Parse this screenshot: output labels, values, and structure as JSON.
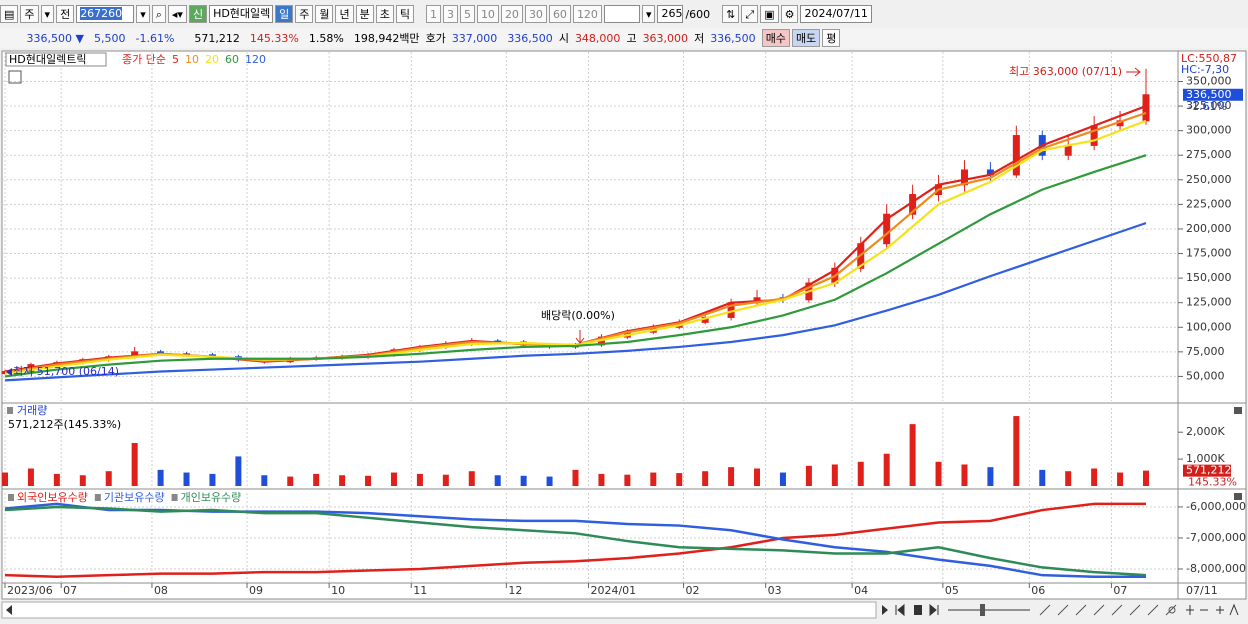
{
  "toolbar": {
    "period_type": "주",
    "prev": "전",
    "code": "267260",
    "new_badge": "신",
    "name": "HD현대일렉",
    "periods": [
      "일",
      "주",
      "월",
      "년",
      "분",
      "초",
      "틱"
    ],
    "intervals": [
      "1",
      "3",
      "5",
      "10",
      "20",
      "30",
      "60",
      "120"
    ],
    "count": "265",
    "max_count": "/600",
    "date": "2024/07/11"
  },
  "quote": {
    "price": "336,500 ▼",
    "change": "5,500",
    "change_pct": "-1.61%",
    "volume": "571,212",
    "volume_pct": "145.33%",
    "turnover": "1.58%",
    "amount": "198,942백만",
    "bid_label": "호가",
    "ask": "337,000",
    "bid": "336,500",
    "open_label": "시",
    "open": "348,000",
    "high_label": "고",
    "high": "363,000",
    "low_label": "저",
    "low": "336,500",
    "buy": "매수",
    "sell": "매도",
    "avg": "평"
  },
  "chart_data": [
    {
      "type": "candlestick",
      "name": "HD현대일렉트릭",
      "ma_label": "종가 단순",
      "x": [
        0,
        6,
        12,
        18,
        24,
        30,
        36,
        42,
        48,
        54,
        60,
        66,
        72,
        78,
        84,
        90,
        96,
        102,
        108,
        114,
        120,
        126,
        132,
        138,
        144,
        150,
        156,
        162,
        168,
        174,
        180,
        186,
        192,
        198,
        204,
        210,
        216,
        222,
        228,
        234,
        240,
        246,
        252,
        258,
        264
      ],
      "open": [
        53000,
        55000,
        62000,
        64000,
        67000,
        70000,
        75000,
        73000,
        72000,
        70000,
        67000,
        65000,
        68000,
        69000,
        70000,
        72000,
        77000,
        80000,
        83000,
        86000,
        85000,
        82000,
        80000,
        82000,
        90000,
        95000,
        100000,
        105000,
        110000,
        125000,
        130000,
        128000,
        145000,
        160000,
        185000,
        215000,
        235000,
        245000,
        260000,
        255000,
        295000,
        275000,
        285000,
        305000,
        310000
      ],
      "high": [
        56700,
        64000,
        66000,
        69000,
        72000,
        80000,
        77000,
        75000,
        74000,
        72000,
        69000,
        70000,
        71000,
        72000,
        74000,
        79000,
        82000,
        86000,
        89000,
        88000,
        87000,
        84000,
        84000,
        93000,
        98000,
        103000,
        108000,
        114000,
        129000,
        138000,
        134000,
        150000,
        166000,
        192000,
        225000,
        245000,
        255000,
        270000,
        268000,
        305000,
        300000,
        295000,
        315000,
        320000,
        363000
      ],
      "low": [
        51700,
        53500,
        60000,
        62000,
        65000,
        68000,
        71000,
        70000,
        68000,
        65000,
        63000,
        63500,
        66000,
        67000,
        68000,
        70000,
        75000,
        78000,
        81000,
        83000,
        80000,
        78000,
        78000,
        80000,
        88000,
        93000,
        98000,
        103000,
        107000,
        122000,
        125000,
        125000,
        141000,
        156000,
        180000,
        210000,
        228000,
        238000,
        248000,
        252000,
        270000,
        270000,
        280000,
        300000,
        306000
      ],
      "close": [
        55000,
        62000,
        64000,
        67000,
        70000,
        75000,
        73000,
        72000,
        70000,
        67000,
        65000,
        68000,
        69000,
        70000,
        72000,
        77000,
        80000,
        83000,
        86000,
        85000,
        82000,
        80000,
        82000,
        90000,
        95000,
        100000,
        105000,
        110000,
        125000,
        130000,
        128000,
        145000,
        160000,
        185000,
        215000,
        235000,
        245000,
        260000,
        255000,
        295000,
        275000,
        285000,
        305000,
        310000,
        336500
      ],
      "up_color": "#e0201b",
      "down_color": "#1f4fd8",
      "ylim": [
        25000,
        380000
      ],
      "yticks": [
        {
          "value": 50000,
          "label": "50,000"
        },
        {
          "value": 75000,
          "label": "75,000"
        },
        {
          "value": 100000,
          "label": "100,000"
        },
        {
          "value": 125000,
          "label": "125,000"
        },
        {
          "value": 150000,
          "label": "150,000"
        },
        {
          "value": 175000,
          "label": "175,000"
        },
        {
          "value": 200000,
          "label": "200,000"
        },
        {
          "value": 225000,
          "label": "225,000"
        },
        {
          "value": 250000,
          "label": "250,000"
        },
        {
          "value": 275000,
          "label": "275,000"
        },
        {
          "value": 300000,
          "label": "300,000"
        },
        {
          "value": 325000,
          "label": "325,000"
        },
        {
          "value": 350000,
          "label": "350,000"
        }
      ],
      "grid": true,
      "lines_x": [
        0,
        12,
        24,
        36,
        48,
        60,
        72,
        84,
        96,
        108,
        120,
        132,
        144,
        156,
        168,
        180,
        192,
        204,
        216,
        228,
        240,
        252,
        264
      ],
      "lines": [
        {
          "name": "5",
          "color": "#e0201b",
          "values": [
            55000,
            63000,
            69000,
            73000,
            70000,
            65000,
            68000,
            72000,
            80000,
            86000,
            83000,
            82000,
            96000,
            105000,
            125000,
            128000,
            158000,
            210000,
            245000,
            255000,
            285000,
            305000,
            325000
          ]
        },
        {
          "name": "10",
          "color": "#f08a1c",
          "values": [
            54000,
            62000,
            68000,
            73000,
            70000,
            66000,
            68000,
            71000,
            79000,
            85000,
            83000,
            82000,
            95000,
            104000,
            122000,
            129000,
            152000,
            195000,
            240000,
            252000,
            282000,
            300000,
            318000
          ]
        },
        {
          "name": "20",
          "color": "#f5e219",
          "values": [
            53000,
            60000,
            67000,
            72000,
            70000,
            67000,
            68000,
            70000,
            77000,
            83000,
            84000,
            82000,
            92000,
            102000,
            116000,
            128000,
            145000,
            180000,
            225000,
            248000,
            280000,
            290000,
            310000
          ]
        },
        {
          "name": "60",
          "color": "#2e9a3a",
          "values": [
            50000,
            57000,
            62000,
            66000,
            68000,
            68000,
            68000,
            70000,
            73000,
            77000,
            80000,
            81000,
            85000,
            92000,
            100000,
            112000,
            128000,
            155000,
            185000,
            215000,
            240000,
            258000,
            275000
          ]
        },
        {
          "name": "120",
          "color": "#2f5ee0",
          "values": [
            46000,
            49000,
            52000,
            55000,
            57000,
            59000,
            61000,
            63000,
            65000,
            68000,
            71000,
            73000,
            76000,
            80000,
            85000,
            92000,
            102000,
            117000,
            133000,
            152000,
            170000,
            188000,
            206000
          ]
        }
      ],
      "annotations": {
        "high": "최고 363,000 (07/11)",
        "low": "최저 51,700 (06/14)",
        "dividend": "배당락(0.00%)"
      },
      "lc": "LC:550,87",
      "hc": "HC:-7,30",
      "last_label": "336,500",
      "last_change": "-1.61%"
    },
    {
      "type": "bar",
      "title": "거래량",
      "subtitle": "571,212주(145.33%)",
      "x": [
        0,
        6,
        12,
        18,
        24,
        30,
        36,
        42,
        48,
        54,
        60,
        66,
        72,
        78,
        84,
        90,
        96,
        102,
        108,
        114,
        120,
        126,
        132,
        138,
        144,
        150,
        156,
        162,
        168,
        174,
        180,
        186,
        192,
        198,
        204,
        210,
        216,
        222,
        228,
        234,
        240,
        246,
        252,
        258,
        264
      ],
      "values": [
        500000,
        650000,
        450000,
        400000,
        550000,
        1600000,
        600000,
        500000,
        450000,
        1100000,
        400000,
        350000,
        450000,
        400000,
        380000,
        500000,
        450000,
        420000,
        550000,
        400000,
        380000,
        350000,
        600000,
        450000,
        420000,
        500000,
        480000,
        550000,
        700000,
        650000,
        500000,
        750000,
        800000,
        900000,
        1200000,
        2300000,
        900000,
        800000,
        700000,
        2600000,
        600000,
        550000,
        650000,
        500000,
        571212
      ],
      "ylim": [
        0,
        2900000
      ],
      "yticks": [
        {
          "value": 1000000,
          "label": "1,000K"
        },
        {
          "value": 2000000,
          "label": "2,000K"
        }
      ],
      "last_label": "571,212",
      "last_pct": "145.33%"
    },
    {
      "type": "line",
      "x": [
        0,
        12,
        24,
        36,
        48,
        60,
        72,
        84,
        96,
        108,
        120,
        132,
        144,
        156,
        168,
        180,
        192,
        204,
        216,
        228,
        240,
        252,
        264
      ],
      "series": [
        {
          "name": "외국인보유수량",
          "color": "#e0201b",
          "values": [
            -8200000,
            -8250000,
            -8200000,
            -8150000,
            -8150000,
            -8100000,
            -8100000,
            -8050000,
            -8000000,
            -7900000,
            -7800000,
            -7750000,
            -7650000,
            -7500000,
            -7300000,
            -7000000,
            -6900000,
            -6700000,
            -6500000,
            -6450000,
            -6100000,
            -5900000,
            -5900000
          ]
        },
        {
          "name": "기관보유수량",
          "color": "#2f5ee0",
          "values": [
            -6050000,
            -5900000,
            -6100000,
            -6100000,
            -6150000,
            -6150000,
            -6150000,
            -6200000,
            -6300000,
            -6400000,
            -6450000,
            -6450000,
            -6550000,
            -6600000,
            -6750000,
            -7050000,
            -7300000,
            -7450000,
            -7700000,
            -7900000,
            -8200000,
            -8250000,
            -8250000
          ]
        },
        {
          "name": "개인보유수량",
          "color": "#2e8b57",
          "values": [
            -6100000,
            -6000000,
            -6050000,
            -6150000,
            -6100000,
            -6200000,
            -6200000,
            -6350000,
            -6500000,
            -6650000,
            -6750000,
            -6850000,
            -7100000,
            -7300000,
            -7350000,
            -7400000,
            -7500000,
            -7500000,
            -7300000,
            -7650000,
            -7950000,
            -8100000,
            -8200000
          ]
        }
      ],
      "ylim": [
        -8420000,
        -5550000
      ],
      "yticks": [
        {
          "value": -6000000,
          "label": "-6,000,000"
        },
        {
          "value": -7000000,
          "label": "-7,000,000"
        },
        {
          "value": -8000000,
          "label": "-8,000,000"
        }
      ],
      "xlim": [
        0,
        264
      ],
      "xticks": [
        {
          "value": 0,
          "label": "2023/06"
        },
        {
          "value": 13,
          "label": "07"
        },
        {
          "value": 34,
          "label": "08"
        },
        {
          "value": 56,
          "label": "09"
        },
        {
          "value": 75,
          "label": "10"
        },
        {
          "value": 94,
          "label": "11"
        },
        {
          "value": 116,
          "label": "12"
        },
        {
          "value": 135,
          "label": "2024/01"
        },
        {
          "value": 157,
          "label": "02"
        },
        {
          "value": 176,
          "label": "03"
        },
        {
          "value": 196,
          "label": "04"
        },
        {
          "value": 217,
          "label": "05"
        },
        {
          "value": 237,
          "label": "06"
        },
        {
          "value": 256,
          "label": "07"
        }
      ],
      "x_end_label": "07/11"
    }
  ]
}
